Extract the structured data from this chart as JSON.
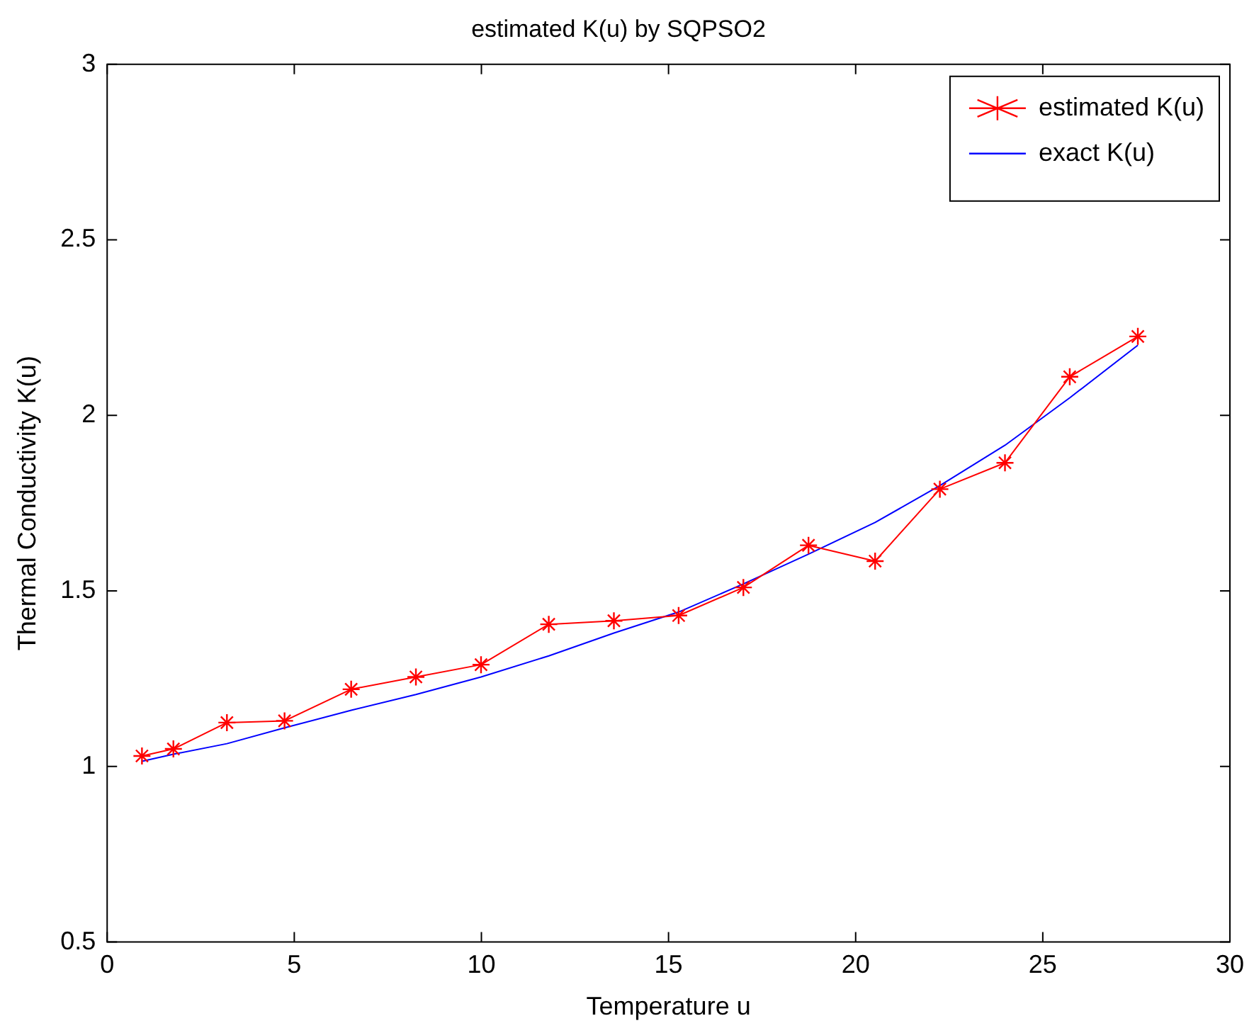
{
  "chart_data": {
    "type": "line",
    "title": "estimated K(u) by SQPSO2",
    "xlabel": "Temperature u",
    "ylabel": "Thermal Conductivity K(u)",
    "x": [
      0.93,
      1.77,
      3.2,
      4.74,
      6.52,
      8.25,
      9.99,
      11.8,
      13.54,
      15.27,
      17.0,
      18.74,
      20.52,
      22.25,
      23.99,
      25.72,
      27.54
    ],
    "series": [
      {
        "name": "estimated K(u)",
        "color": "#ff0000",
        "marker": "cross",
        "values": [
          1.03,
          1.05,
          1.125,
          1.13,
          1.22,
          1.255,
          1.29,
          1.405,
          1.415,
          1.43,
          1.51,
          1.63,
          1.585,
          1.79,
          1.865,
          2.11,
          2.225
        ]
      },
      {
        "name": "exact K(u)",
        "color": "#0000ff",
        "marker": "none",
        "values": [
          1.015,
          1.035,
          1.065,
          1.11,
          1.16,
          1.205,
          1.255,
          1.315,
          1.38,
          1.44,
          1.52,
          1.605,
          1.695,
          1.8,
          1.915,
          2.05,
          2.2
        ]
      }
    ],
    "xlim": [
      0,
      30
    ],
    "xticks": [
      0,
      5,
      10,
      15,
      20,
      25,
      30
    ],
    "ylim": [
      0.5,
      3
    ],
    "yticks": [
      0.5,
      1,
      1.5,
      2,
      2.5,
      3
    ],
    "grid": false,
    "legend": "top right",
    "line_style": "solid"
  }
}
